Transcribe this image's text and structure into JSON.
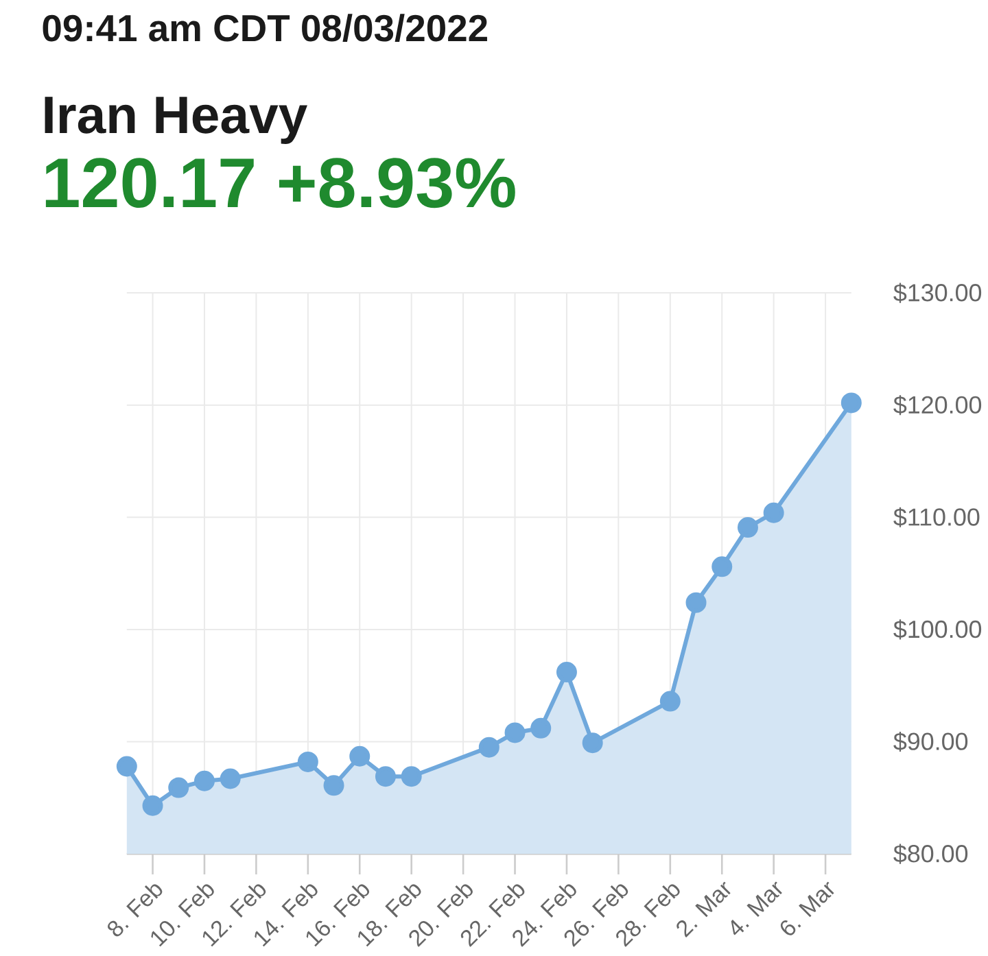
{
  "chart_data": {
    "type": "area",
    "annotations": [
      "09:41 am CDT 08/03/2022"
    ],
    "title": "Iran Heavy",
    "subtitle": "120.17 +8.93%",
    "x": [
      "2022-02-07",
      "2022-02-08",
      "2022-02-09",
      "2022-02-10",
      "2022-02-11",
      "2022-02-14",
      "2022-02-15",
      "2022-02-16",
      "2022-02-17",
      "2022-02-18",
      "2022-02-21",
      "2022-02-22",
      "2022-02-23",
      "2022-02-24",
      "2022-02-25",
      "2022-02-28",
      "2022-03-01",
      "2022-03-02",
      "2022-03-03",
      "2022-03-04",
      "2022-03-07"
    ],
    "values": [
      87.8,
      84.3,
      85.9,
      86.5,
      86.7,
      88.2,
      86.1,
      88.7,
      86.9,
      86.9,
      89.5,
      90.8,
      91.2,
      96.2,
      89.9,
      93.6,
      102.4,
      105.6,
      109.1,
      110.4,
      120.2
    ],
    "color": "#6fa8dc",
    "xlim": [
      "2022-02-07",
      "2022-03-07"
    ],
    "xticks": [
      {
        "value": "2022-02-08",
        "label": "8. Feb"
      },
      {
        "value": "2022-02-10",
        "label": "10. Feb"
      },
      {
        "value": "2022-02-12",
        "label": "12. Feb"
      },
      {
        "value": "2022-02-14",
        "label": "14. Feb"
      },
      {
        "value": "2022-02-16",
        "label": "16. Feb"
      },
      {
        "value": "2022-02-18",
        "label": "18. Feb"
      },
      {
        "value": "2022-02-20",
        "label": "20. Feb"
      },
      {
        "value": "2022-02-22",
        "label": "22. Feb"
      },
      {
        "value": "2022-02-24",
        "label": "24. Feb"
      },
      {
        "value": "2022-02-26",
        "label": "26. Feb"
      },
      {
        "value": "2022-02-28",
        "label": "28. Feb"
      },
      {
        "value": "2022-03-02",
        "label": "2. Mar"
      },
      {
        "value": "2022-03-04",
        "label": "4. Mar"
      },
      {
        "value": "2022-03-06",
        "label": "6. Mar"
      }
    ],
    "ylim": [
      80,
      130
    ],
    "yticks": [
      {
        "value": 80,
        "label": "$80.00"
      },
      {
        "value": 90,
        "label": "$90.00"
      },
      {
        "value": 100,
        "label": "$100.00"
      },
      {
        "value": 110,
        "label": "$110.00"
      },
      {
        "value": 120,
        "label": "$120.00"
      },
      {
        "value": 130,
        "label": "$130.00"
      }
    ],
    "grid": true,
    "marker": "circle"
  }
}
